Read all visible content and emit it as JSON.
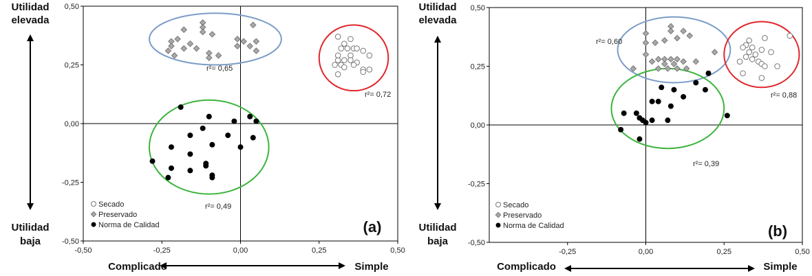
{
  "chart_data": [
    {
      "type": "scatter",
      "panel_label": "(a)",
      "xlim": [
        -0.5,
        0.5
      ],
      "ylim": [
        -0.5,
        0.5
      ],
      "x_ticks": [
        -0.5,
        -0.25,
        0.0,
        0.25,
        0.5
      ],
      "y_ticks": [
        -0.5,
        -0.25,
        0.0,
        0.25,
        0.5
      ],
      "x_tick_labels": [
        "-0,50",
        "-0,25",
        "0,00",
        "0,25",
        "0,50"
      ],
      "y_tick_labels": [
        "-0,50",
        "-0,25",
        "0,00",
        "0,25",
        "0,50"
      ],
      "y_label_top": [
        "Utilidad",
        "elevada"
      ],
      "y_label_bottom": [
        "Utilidad",
        "baja"
      ],
      "x_label_left": "Complicado",
      "x_label_right": "Simple",
      "grid": false,
      "legend_placement": "bottom-left",
      "series": [
        {
          "name": "Secado",
          "marker": "open-circle",
          "color": "#888888",
          "points": [
            [
              0.31,
              0.37
            ],
            [
              0.33,
              0.34
            ],
            [
              0.35,
              0.36
            ],
            [
              0.32,
              0.32
            ],
            [
              0.31,
              0.27
            ],
            [
              0.34,
              0.32
            ],
            [
              0.36,
              0.32
            ],
            [
              0.37,
              0.32
            ],
            [
              0.39,
              0.31
            ],
            [
              0.35,
              0.29
            ],
            [
              0.31,
              0.29
            ],
            [
              0.33,
              0.27
            ],
            [
              0.35,
              0.27
            ],
            [
              0.37,
              0.26
            ],
            [
              0.3,
              0.25
            ],
            [
              0.32,
              0.25
            ],
            [
              0.36,
              0.25
            ],
            [
              0.39,
              0.23
            ],
            [
              0.41,
              0.23
            ],
            [
              0.41,
              0.29
            ],
            [
              0.33,
              0.24
            ],
            [
              0.39,
              0.22
            ],
            [
              0.31,
              0.21
            ]
          ]
        },
        {
          "name": "Preservado",
          "marker": "diamond",
          "color": "#999999",
          "points": [
            [
              -0.12,
              0.43
            ],
            [
              -0.12,
              0.41
            ],
            [
              -0.18,
              0.4
            ],
            [
              -0.09,
              0.38
            ],
            [
              -0.12,
              0.39
            ],
            [
              0.04,
              0.42
            ],
            [
              -0.2,
              0.36
            ],
            [
              -0.01,
              0.36
            ],
            [
              0.01,
              0.35
            ],
            [
              0.05,
              0.35
            ],
            [
              -0.22,
              0.35
            ],
            [
              -0.16,
              0.34
            ],
            [
              -0.18,
              0.32
            ],
            [
              -0.01,
              0.33
            ],
            [
              0.03,
              0.33
            ],
            [
              -0.22,
              0.33
            ],
            [
              -0.14,
              0.32
            ],
            [
              -0.1,
              0.3
            ],
            [
              -0.23,
              0.31
            ],
            [
              -0.07,
              0.29
            ],
            [
              -0.1,
              0.28
            ],
            [
              -0.21,
              0.29
            ],
            [
              0.05,
              0.31
            ]
          ]
        },
        {
          "name": "Norma de Calidad",
          "marker": "filled-circle",
          "color": "#000000",
          "points": [
            [
              -0.19,
              0.07
            ],
            [
              -0.1,
              0.03
            ],
            [
              0.03,
              0.03
            ],
            [
              -0.02,
              0.01
            ],
            [
              0.05,
              0.01
            ],
            [
              -0.12,
              -0.02
            ],
            [
              -0.16,
              -0.05
            ],
            [
              -0.04,
              -0.05
            ],
            [
              0.04,
              -0.06
            ],
            [
              -0.09,
              -0.09
            ],
            [
              0.0,
              -0.1
            ],
            [
              -0.22,
              -0.1
            ],
            [
              -0.16,
              -0.13
            ],
            [
              -0.28,
              -0.16
            ],
            [
              -0.11,
              -0.17
            ],
            [
              -0.22,
              -0.19
            ],
            [
              -0.16,
              -0.2
            ],
            [
              -0.11,
              -0.18
            ],
            [
              -0.09,
              -0.22
            ],
            [
              -0.23,
              -0.23
            ],
            [
              -0.09,
              -0.23
            ]
          ]
        }
      ],
      "ellipses": [
        {
          "color": "#7a9cc6",
          "cx": -0.08,
          "cy": 0.36,
          "rx": 0.21,
          "ry": 0.11,
          "label": "r²= 0,65"
        },
        {
          "color": "#e0262a",
          "cx": 0.36,
          "cy": 0.28,
          "rx": 0.11,
          "ry": 0.14,
          "label": "r²= 0,72"
        },
        {
          "color": "#3cb43c",
          "cx": -0.1,
          "cy": -0.1,
          "rx": 0.19,
          "ry": 0.2,
          "label": "r²= 0,49"
        }
      ]
    },
    {
      "type": "scatter",
      "panel_label": "(b)",
      "xlim": [
        -0.5,
        0.5
      ],
      "ylim": [
        -0.5,
        0.5
      ],
      "x_ticks": [
        -0.25,
        0.0,
        0.25,
        0.5
      ],
      "y_ticks": [
        -0.5,
        -0.25,
        0.0,
        0.25,
        0.5
      ],
      "x_tick_labels": [
        "-0,25",
        "0,00",
        "0,25",
        "0,50"
      ],
      "y_tick_labels": [
        "-0,50",
        "-0,25",
        "0,00",
        "0,25",
        "0,50"
      ],
      "y_label_top": [
        "Utilidad",
        "elevada"
      ],
      "y_label_bottom": [
        "Utilidad",
        "baja"
      ],
      "x_label_left": "Complicado",
      "x_label_right": "Simple",
      "grid": false,
      "legend_placement": "bottom-left",
      "series": [
        {
          "name": "Secado",
          "marker": "open-circle",
          "color": "#888888",
          "points": [
            [
              0.46,
              0.38
            ],
            [
              0.38,
              0.37
            ],
            [
              0.33,
              0.36
            ],
            [
              0.32,
              0.34
            ],
            [
              0.34,
              0.33
            ],
            [
              0.37,
              0.32
            ],
            [
              0.31,
              0.33
            ],
            [
              0.33,
              0.31
            ],
            [
              0.35,
              0.3
            ],
            [
              0.4,
              0.31
            ],
            [
              0.32,
              0.29
            ],
            [
              0.34,
              0.28
            ],
            [
              0.36,
              0.27
            ],
            [
              0.37,
              0.26
            ],
            [
              0.38,
              0.25
            ],
            [
              0.3,
              0.27
            ],
            [
              0.42,
              0.25
            ],
            [
              0.31,
              0.22
            ],
            [
              0.37,
              0.2
            ]
          ]
        },
        {
          "name": "Preservado",
          "marker": "diamond",
          "color": "#999999",
          "points": [
            [
              0.08,
              0.42
            ],
            [
              0.08,
              0.4
            ],
            [
              0.12,
              0.4
            ],
            [
              0.0,
              0.39
            ],
            [
              0.1,
              0.37
            ],
            [
              0.14,
              0.38
            ],
            [
              0.06,
              0.36
            ],
            [
              0.0,
              0.35
            ],
            [
              0.03,
              0.35
            ],
            [
              0.22,
              0.31
            ],
            [
              0.0,
              0.3
            ],
            [
              0.04,
              0.28
            ],
            [
              0.06,
              0.28
            ],
            [
              0.08,
              0.28
            ],
            [
              0.1,
              0.28
            ],
            [
              0.02,
              0.27
            ],
            [
              0.06,
              0.26
            ],
            [
              0.09,
              0.26
            ],
            [
              0.12,
              0.27
            ],
            [
              0.04,
              0.24
            ],
            [
              0.07,
              0.24
            ],
            [
              0.1,
              0.24
            ],
            [
              0.13,
              0.24
            ],
            [
              0.16,
              0.27
            ],
            [
              -0.04,
              0.24
            ]
          ]
        },
        {
          "name": "Norma de Calidad",
          "marker": "filled-circle",
          "color": "#000000",
          "points": [
            [
              0.2,
              0.22
            ],
            [
              0.16,
              0.18
            ],
            [
              0.05,
              0.16
            ],
            [
              0.09,
              0.15
            ],
            [
              0.19,
              0.15
            ],
            [
              0.12,
              0.12
            ],
            [
              0.02,
              0.1
            ],
            [
              0.04,
              0.1
            ],
            [
              0.08,
              0.08
            ],
            [
              -0.07,
              0.05
            ],
            [
              -0.03,
              0.05
            ],
            [
              -0.01,
              0.02
            ],
            [
              0.02,
              0.02
            ],
            [
              0.07,
              0.02
            ],
            [
              -0.02,
              0.03
            ],
            [
              0.26,
              0.04
            ],
            [
              0.0,
              0.01
            ],
            [
              -0.08,
              -0.02
            ],
            [
              -0.02,
              -0.06
            ]
          ]
        }
      ],
      "ellipses": [
        {
          "color": "#7a9cc6",
          "cx": 0.09,
          "cy": 0.32,
          "rx": 0.18,
          "ry": 0.14,
          "label": "r²= 0,60"
        },
        {
          "color": "#e0262a",
          "cx": 0.37,
          "cy": 0.3,
          "rx": 0.12,
          "ry": 0.14,
          "label": "r²= 0,88"
        },
        {
          "color": "#3cb43c",
          "cx": 0.07,
          "cy": 0.07,
          "rx": 0.18,
          "ry": 0.17,
          "label": "r²= 0,39"
        }
      ]
    }
  ]
}
